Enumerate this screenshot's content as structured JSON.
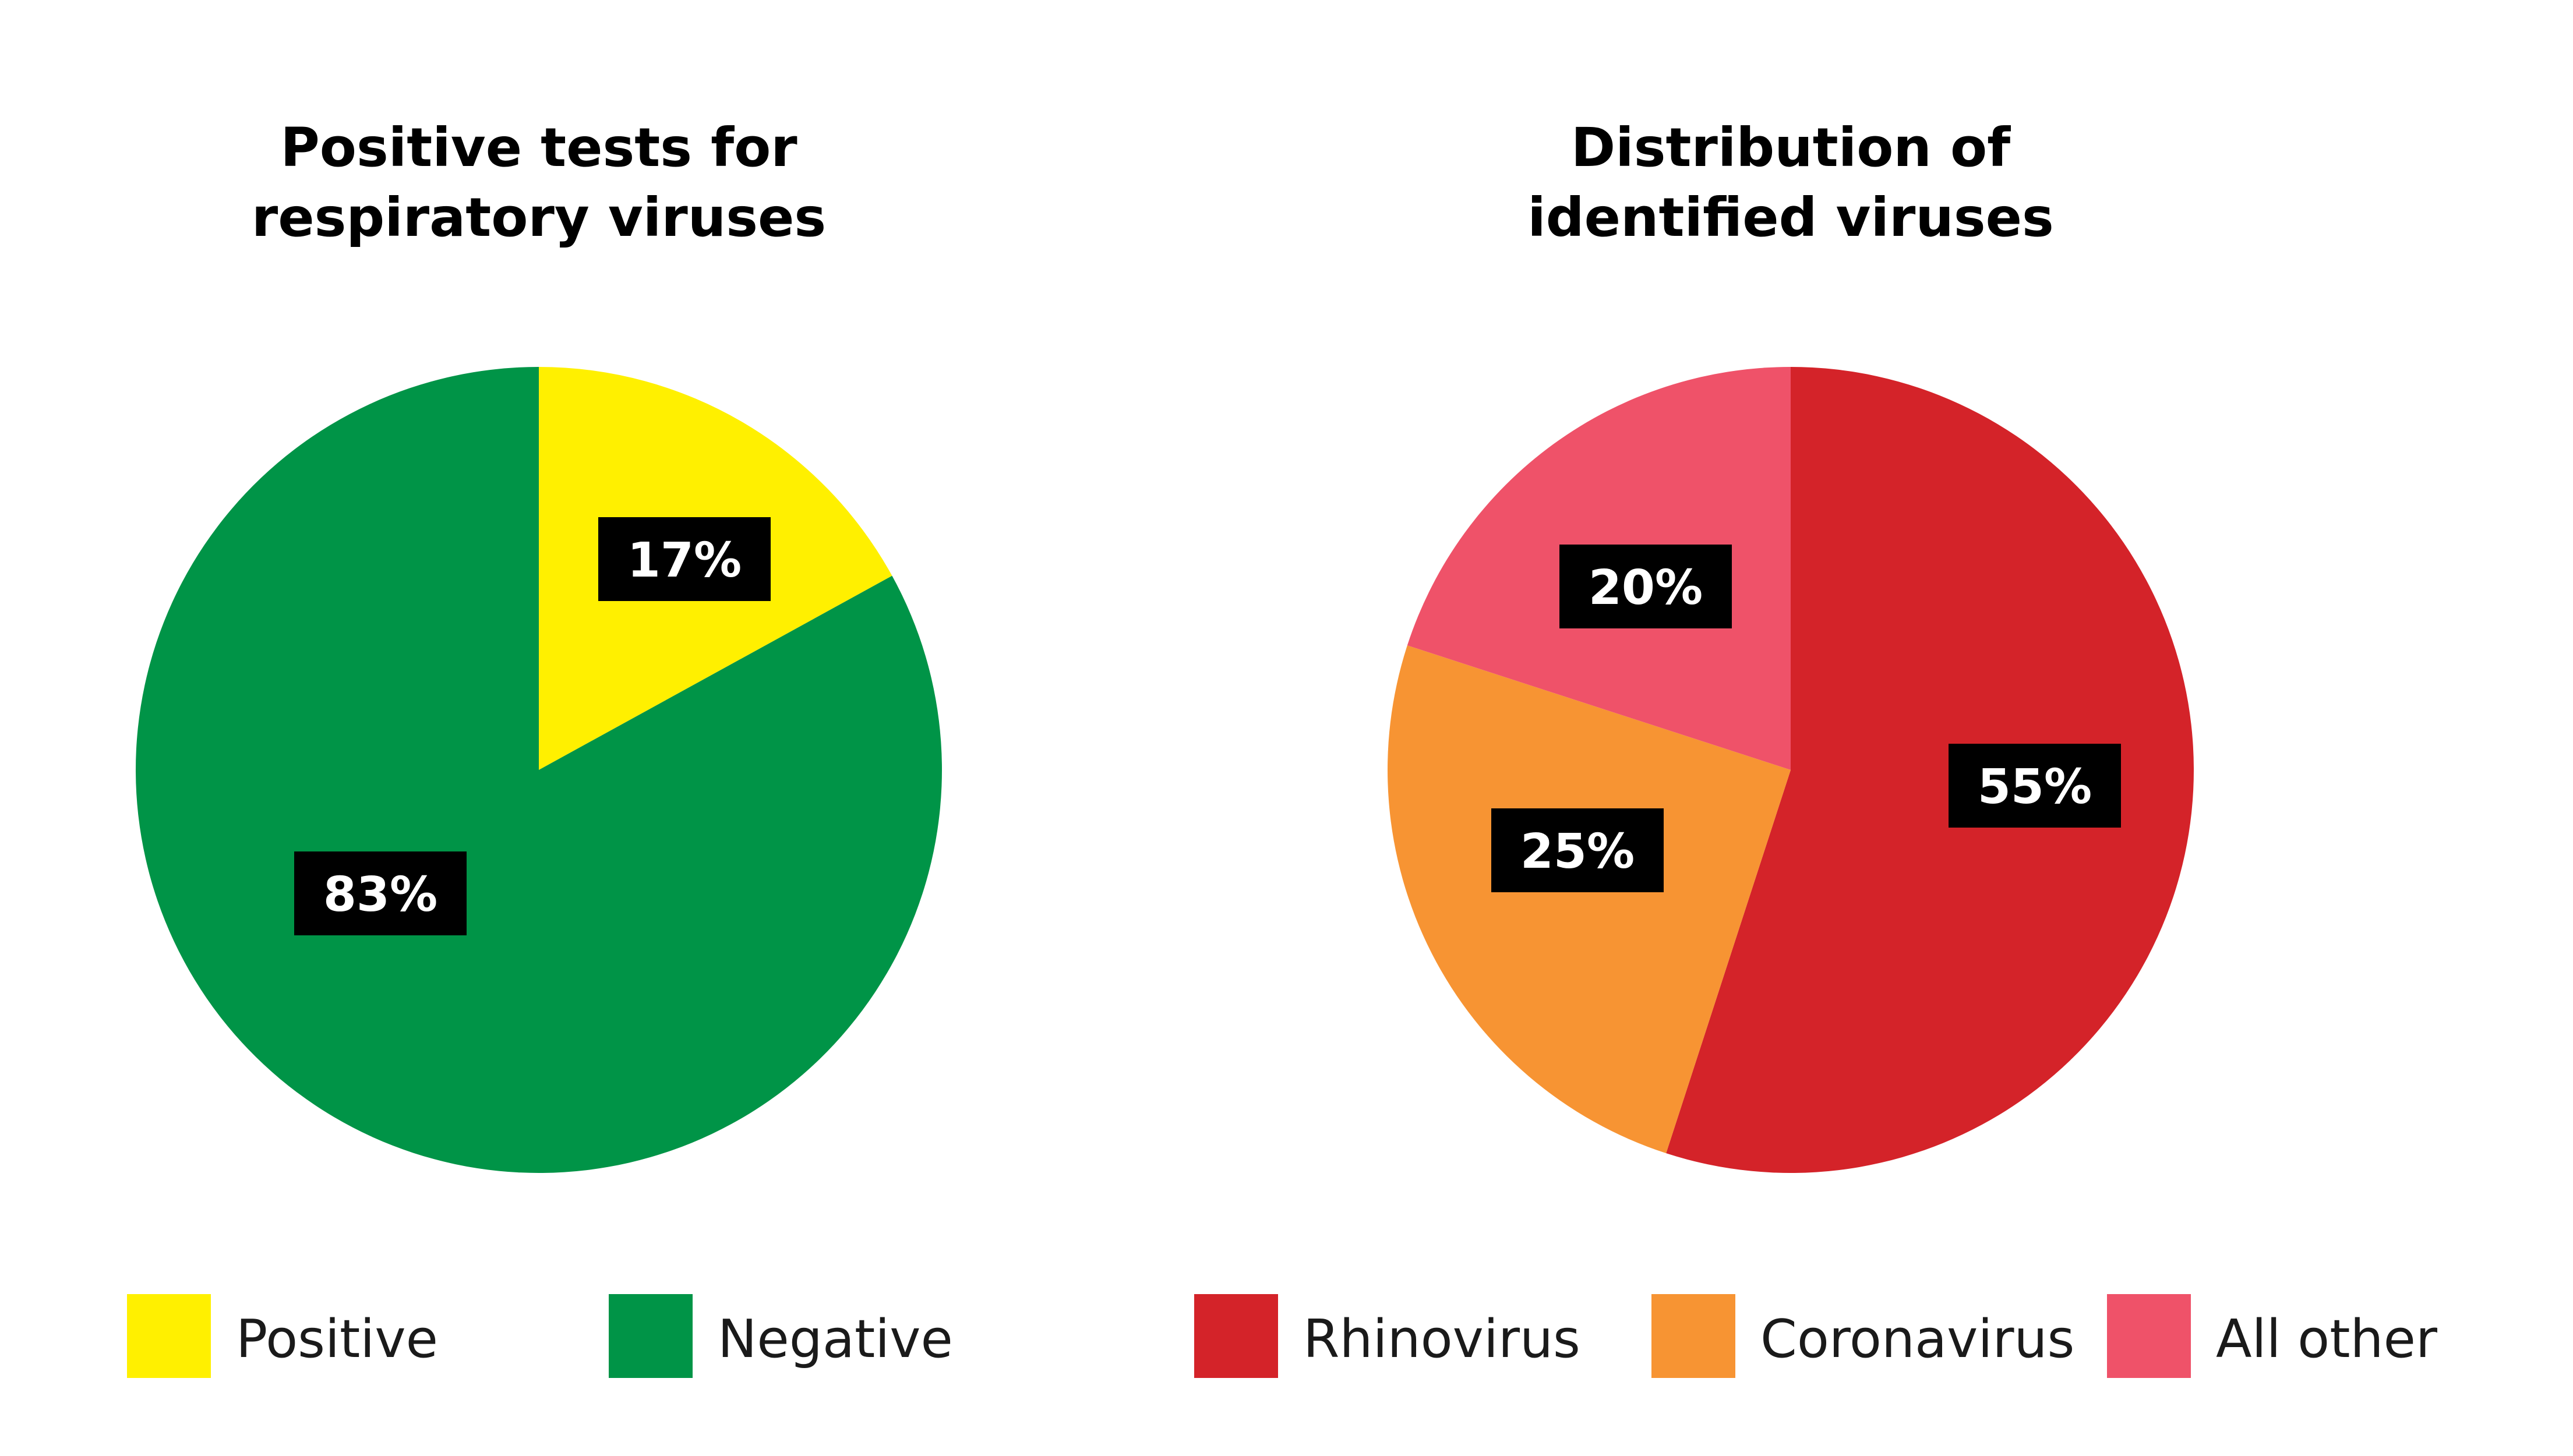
{
  "chart_data": [
    {
      "type": "pie",
      "title": [
        "Positive tests for",
        "respiratory viruses"
      ],
      "slices": [
        {
          "label": "Positive",
          "value": 17,
          "display": "17%",
          "color": "#FFF000"
        },
        {
          "label": "Negative",
          "value": 83,
          "display": "83%",
          "color": "#009447"
        }
      ],
      "legend": "bottom"
    },
    {
      "type": "pie",
      "title": [
        "Distribution of",
        "identified viruses"
      ],
      "slices": [
        {
          "label": "Rhinovirus",
          "value": 55,
          "display": "55%",
          "color": "#D42329"
        },
        {
          "label": "Coronavirus",
          "value": 25,
          "display": "25%",
          "color": "#F79433"
        },
        {
          "label": "All other",
          "value": 20,
          "display": "20%",
          "color": "#EF5269"
        }
      ],
      "legend": "bottom"
    }
  ]
}
